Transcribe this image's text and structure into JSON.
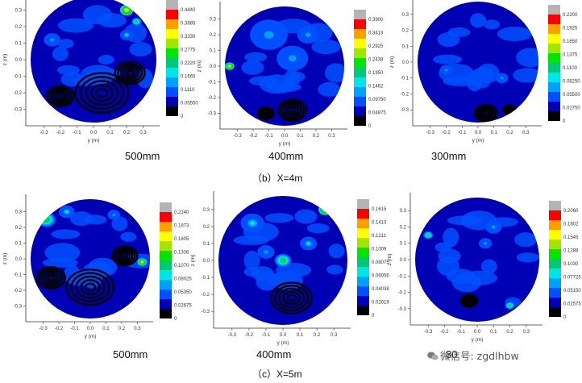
{
  "captions": {
    "row1": "（b）X=4m",
    "row2": "（c）X=5m",
    "labels": [
      "500mm",
      "400mm",
      "300mm",
      "500mm",
      "400mm",
      "30"
    ]
  },
  "watermark": "微信号: zgdlhbw",
  "axis": {
    "xlabel": "y (m)",
    "ylabel": "z (m)"
  },
  "colors": [
    "#000000",
    "#0000b4",
    "#0050ff",
    "#00a0ff",
    "#00e6e6",
    "#00c878",
    "#00e600",
    "#a0e600",
    "#ffff00",
    "#ffa000",
    "#ff0000",
    "#b4b4b4"
  ],
  "chart_data": [
    {
      "type": "heatmap",
      "panel": "b-500mm",
      "xlabel": "y (m)",
      "ylabel": "z (m)",
      "xticks": [
        "-0.3",
        "-0.2",
        "-0.1",
        "0.0",
        "0.1",
        "0.2",
        "0.3"
      ],
      "yticks": [
        "0.3",
        "0.2",
        "0.1",
        "0.0",
        "-0.1",
        "-0.2",
        "-0.3"
      ],
      "xlim": [
        -0.38,
        0.38
      ],
      "ylim": [
        -0.38,
        0.38
      ],
      "legend": [
        "0.4440",
        "0.3885",
        "0.3330",
        "0.2775",
        "0.2220",
        "0.1665",
        "0.1110",
        "0.05550",
        "0"
      ],
      "blobs": [
        {
          "y": 0.05,
          "z": -0.2,
          "r": 0.16,
          "c": 0
        },
        {
          "y": 0.22,
          "z": -0.08,
          "r": 0.09,
          "c": 0
        },
        {
          "y": -0.2,
          "z": -0.22,
          "r": 0.08,
          "c": 0
        },
        {
          "y": 0.2,
          "z": 0.3,
          "r": 0.04,
          "c": 8
        },
        {
          "y": 0.26,
          "z": 0.23,
          "r": 0.03,
          "c": 6
        },
        {
          "y": 0.2,
          "z": 0.15,
          "r": 0.04,
          "c": 4
        },
        {
          "y": -0.25,
          "z": 0.12,
          "r": 0.05,
          "c": 3
        }
      ]
    },
    {
      "type": "heatmap",
      "panel": "b-400mm",
      "xlabel": "y (m)",
      "ylabel": "z (m)",
      "xticks": [
        "-0.3",
        "-0.2",
        "-0.1",
        "0.0",
        "0.1",
        "0.2",
        "0.3"
      ],
      "yticks": [
        "0.3",
        "0.2",
        "0.1",
        "0.0",
        "-0.1",
        "-0.2",
        "-0.3"
      ],
      "xlim": [
        -0.38,
        0.38
      ],
      "ylim": [
        -0.38,
        0.38
      ],
      "legend": [
        "0.3900",
        "0.3413",
        "0.2925",
        "0.2438",
        "0.1950",
        "0.1462",
        "0.09750",
        "0.04875",
        "0"
      ],
      "blobs": [
        {
          "y": 0.05,
          "z": -0.28,
          "r": 0.09,
          "c": 0
        },
        {
          "y": -0.12,
          "z": -0.3,
          "r": 0.05,
          "c": 0
        },
        {
          "y": -0.1,
          "z": 0.2,
          "r": 0.12,
          "c": 3
        },
        {
          "y": 0.05,
          "z": 0.05,
          "r": 0.1,
          "c": 3
        },
        {
          "y": 0.15,
          "z": 0.2,
          "r": 0.07,
          "c": 3
        },
        {
          "y": -0.35,
          "z": 0.0,
          "r": 0.03,
          "c": 8
        }
      ]
    },
    {
      "type": "heatmap",
      "panel": "b-300mm",
      "xlabel": "y (m)",
      "ylabel": "z (m)",
      "xticks": [
        "-0.3",
        "-0.2",
        "-0.1",
        "0.0",
        "0.1",
        "0.2",
        "0.3"
      ],
      "yticks": [
        "0.3",
        "0.2",
        "0.1",
        "0.0",
        "-0.1",
        "-0.2",
        "-0.3"
      ],
      "xlim": [
        -0.38,
        0.38
      ],
      "ylim": [
        -0.38,
        0.38
      ],
      "legend": [
        "0.2200",
        "0.1925",
        "0.1650",
        "0.1375",
        "0.1100",
        "0.08250",
        "0.05500",
        "0.02750",
        "0"
      ],
      "blobs": [
        {
          "y": 0.05,
          "z": -0.32,
          "r": 0.07,
          "c": 0
        },
        {
          "y": 0.2,
          "z": -0.3,
          "r": 0.04,
          "c": 0
        },
        {
          "y": -0.2,
          "z": -0.05,
          "r": 0.04,
          "c": 3
        },
        {
          "y": 0.15,
          "z": -0.1,
          "r": 0.04,
          "c": 3
        }
      ]
    },
    {
      "type": "heatmap",
      "panel": "c-500mm",
      "xlabel": "y (m)",
      "ylabel": "z (m)",
      "xticks": [
        "-0.3",
        "-0.2",
        "-0.1",
        "0.0",
        "0.1",
        "0.2",
        "0.3"
      ],
      "yticks": [
        "0.3",
        "0.2",
        "0.1",
        "0.0",
        "-0.1",
        "-0.2",
        "-0.3"
      ],
      "xlim": [
        -0.38,
        0.38
      ],
      "ylim": [
        -0.38,
        0.38
      ],
      "legend": [
        "0.2140",
        "0.1873",
        "0.1605",
        "0.1338",
        "0.1070",
        "0.08025",
        "0.05350",
        "0.02675",
        "0"
      ],
      "blobs": [
        {
          "y": 0.0,
          "z": -0.18,
          "r": 0.15,
          "c": 0
        },
        {
          "y": -0.25,
          "z": -0.12,
          "r": 0.09,
          "c": 0
        },
        {
          "y": 0.22,
          "z": 0.02,
          "r": 0.08,
          "c": 0
        },
        {
          "y": -0.28,
          "z": 0.25,
          "r": 0.06,
          "c": 6
        },
        {
          "y": -0.15,
          "z": 0.3,
          "r": 0.05,
          "c": 4
        },
        {
          "y": 0.33,
          "z": -0.02,
          "r": 0.03,
          "c": 8
        },
        {
          "y": 0.15,
          "z": 0.28,
          "r": 0.04,
          "c": 3
        }
      ]
    },
    {
      "type": "heatmap",
      "panel": "c-400mm",
      "xlabel": "y (m)",
      "ylabel": "z (m)",
      "xticks": [
        "-0.3",
        "-0.2",
        "-0.1",
        "0.0",
        "0.1",
        "0.2",
        "0.3"
      ],
      "yticks": [
        "0.3",
        "0.2",
        "0.1",
        "0.0",
        "-0.1",
        "-0.2",
        "-0.3"
      ],
      "xlim": [
        -0.38,
        0.38
      ],
      "ylim": [
        -0.38,
        0.38
      ],
      "legend": [
        "0.1615",
        "0.1413",
        "0.1211",
        "0.1009",
        "0.08075",
        "0.06056",
        "0.04038",
        "0.02019",
        "0"
      ],
      "blobs": [
        {
          "y": 0.05,
          "z": -0.22,
          "r": 0.12,
          "c": 0
        },
        {
          "y": -0.18,
          "z": 0.22,
          "r": 0.07,
          "c": 4
        },
        {
          "y": 0.0,
          "z": 0.0,
          "r": 0.05,
          "c": 6
        },
        {
          "y": 0.15,
          "z": 0.1,
          "r": 0.05,
          "c": 4
        },
        {
          "y": 0.25,
          "z": 0.3,
          "r": 0.04,
          "c": 8
        },
        {
          "y": -0.1,
          "z": 0.05,
          "r": 0.05,
          "c": 3
        }
      ]
    },
    {
      "type": "heatmap",
      "panel": "c-300mm",
      "xlabel": "y (m)",
      "ylabel": "z (m)",
      "xticks": [
        "-0.3",
        "-0.2",
        "-0.1",
        "0.0",
        "0.1",
        "0.2",
        "0.3"
      ],
      "yticks": [
        "0.3",
        "0.2",
        "0.1",
        "0.0",
        "-0.1",
        "-0.2",
        "-0.3"
      ],
      "xlim": [
        -0.38,
        0.38
      ],
      "ylim": [
        -0.38,
        0.38
      ],
      "legend": [
        "0.2060",
        "0.1802",
        "0.1545",
        "0.1288",
        "0.1030",
        "0.07725",
        "0.05150",
        "0.02575",
        "0"
      ],
      "blobs": [
        {
          "y": -0.3,
          "z": 0.15,
          "r": 0.03,
          "c": 6
        },
        {
          "y": 0.2,
          "z": -0.28,
          "r": 0.03,
          "c": 6
        },
        {
          "y": 0.1,
          "z": 0.2,
          "r": 0.05,
          "c": 3
        },
        {
          "y": -0.05,
          "z": -0.25,
          "r": 0.05,
          "c": 0
        },
        {
          "y": 0.05,
          "z": 0.1,
          "r": 0.04,
          "c": 3
        }
      ]
    }
  ]
}
